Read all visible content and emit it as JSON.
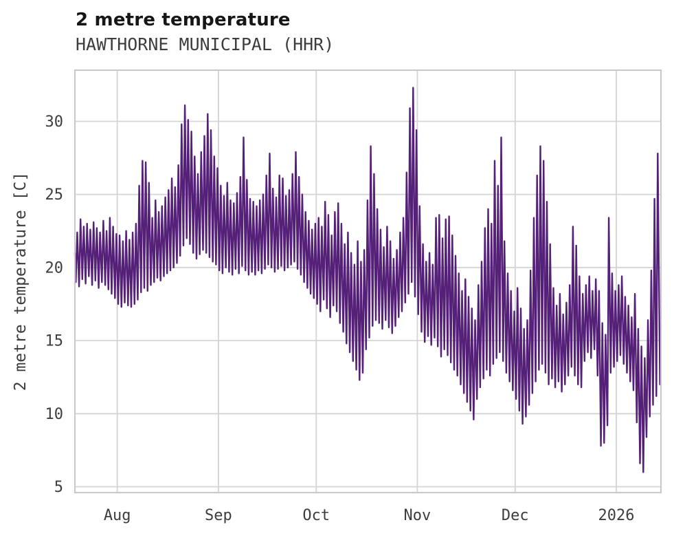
{
  "chart_data": {
    "type": "line",
    "title": "2 metre temperature",
    "subtitle": "HAWTHORNE MUNICIPAL (HHR)",
    "ylabel": "2 metre temperature [C]",
    "xlabel": "",
    "grid": true,
    "legend_position": "none",
    "line_color": "#552078",
    "grid_color": "#d4d4d4",
    "border_color": "#c9c9c9",
    "text_color": "#3d3d3d",
    "background_color": "#ffffff",
    "ylim": [
      4.6,
      33.5
    ],
    "yticks": [
      5,
      10,
      15,
      20,
      25,
      30
    ],
    "x_axis": {
      "unit": "day-index (0 = first plotted day, ~mid-July)",
      "total_days": 179.7,
      "ticks": [
        {
          "label": "Aug",
          "day": 13
        },
        {
          "label": "Sep",
          "day": 44
        },
        {
          "label": "Oct",
          "day": 74
        },
        {
          "label": "Nov",
          "day": 105
        },
        {
          "label": "Dec",
          "day": 135
        },
        {
          "label": "2026",
          "day": 166
        }
      ]
    },
    "series_name": "2 metre temperature [C]",
    "sampling_note": "high-frequency series depicted; encoded as daily min/max envelope read from the plot",
    "daily_max": [
      22.4,
      23.3,
      22.8,
      23.0,
      22.6,
      23.1,
      22.7,
      22.4,
      23.2,
      22.5,
      23.4,
      22.8,
      22.3,
      22.2,
      21.8,
      22.5,
      21.9,
      22.4,
      23.0,
      25.6,
      27.3,
      27.2,
      25.8,
      23.4,
      24.6,
      23.8,
      24.2,
      24.8,
      25.3,
      26.1,
      25.5,
      27.0,
      29.8,
      31.1,
      30.1,
      29.3,
      27.6,
      26.4,
      27.9,
      29.0,
      30.5,
      29.4,
      27.6,
      26.8,
      25.6,
      24.9,
      25.8,
      24.6,
      24.4,
      25.1,
      26.2,
      28.9,
      26.0,
      24.7,
      24.5,
      24.2,
      24.6,
      25.0,
      26.3,
      27.8,
      25.4,
      24.8,
      26.3,
      26.1,
      24.9,
      25.3,
      26.4,
      27.9,
      26.2,
      25.0,
      23.8,
      23.2,
      22.6,
      23.0,
      23.4,
      22.8,
      24.5,
      23.6,
      22.2,
      23.8,
      24.4,
      23.0,
      21.6,
      22.4,
      21.0,
      20.2,
      21.8,
      20.4,
      21.2,
      24.6,
      28.3,
      26.4,
      24.0,
      22.6,
      21.4,
      22.8,
      21.8,
      20.6,
      21.2,
      22.4,
      23.4,
      26.5,
      30.9,
      32.3,
      29.4,
      24.2,
      21.6,
      20.4,
      21.0,
      20.2,
      23.4,
      23.6,
      22.0,
      23.3,
      23.5,
      22.2,
      20.8,
      19.6,
      18.4,
      19.2,
      18.0,
      17.2,
      16.4,
      18.8,
      20.4,
      22.7,
      24.0,
      23.0,
      27.3,
      25.6,
      28.9,
      21.8,
      19.6,
      18.4,
      17.0,
      18.6,
      17.2,
      15.8,
      16.4,
      19.8,
      23.4,
      26.3,
      28.3,
      27.3,
      24.5,
      21.6,
      18.6,
      17.4,
      18.2,
      16.8,
      17.6,
      18.8,
      22.8,
      21.5,
      19.4,
      18.2,
      18.8,
      19.4,
      18.4,
      19.2,
      18.4,
      16.2,
      15.4,
      23.4,
      19.6,
      18.4,
      18.8,
      19.4,
      18.0,
      17.4,
      16.6,
      18.2,
      15.8,
      14.6,
      13.8,
      16.4,
      19.8,
      24.7,
      27.8
    ],
    "daily_min": [
      19.0,
      18.7,
      19.2,
      18.9,
      19.4,
      18.8,
      19.1,
      18.6,
      19.0,
      18.8,
      18.5,
      18.2,
      17.9,
      17.5,
      17.3,
      17.6,
      17.4,
      17.3,
      17.5,
      17.8,
      18.3,
      18.6,
      18.4,
      18.8,
      19.0,
      19.3,
      19.1,
      19.4,
      19.6,
      19.8,
      20.0,
      20.3,
      20.8,
      21.5,
      22.0,
      21.6,
      21.0,
      20.6,
      20.9,
      21.2,
      21.0,
      20.7,
      20.4,
      20.2,
      19.8,
      19.6,
      20.0,
      19.7,
      19.5,
      19.9,
      19.6,
      20.1,
      19.8,
      19.5,
      19.7,
      19.5,
      19.8,
      19.6,
      19.9,
      20.2,
      20.0,
      19.7,
      19.9,
      20.1,
      19.8,
      20.0,
      20.2,
      20.4,
      19.9,
      19.5,
      19.0,
      18.6,
      18.2,
      17.9,
      17.5,
      17.0,
      17.8,
      17.2,
      16.6,
      17.4,
      17.0,
      16.2,
      15.6,
      14.8,
      14.2,
      13.6,
      13.0,
      12.3,
      12.8,
      14.4,
      15.2,
      16.0,
      16.4,
      16.2,
      15.8,
      16.4,
      15.9,
      15.5,
      16.0,
      16.6,
      17.0,
      17.6,
      18.2,
      19.0,
      18.0,
      16.8,
      15.6,
      14.9,
      15.3,
      14.7,
      15.2,
      14.6,
      13.9,
      14.4,
      14.0,
      13.5,
      13.0,
      12.6,
      12.0,
      11.4,
      10.8,
      10.2,
      9.6,
      11.0,
      11.8,
      12.4,
      13.0,
      12.6,
      13.4,
      13.8,
      14.2,
      13.6,
      12.8,
      12.2,
      11.6,
      11.0,
      10.2,
      9.3,
      9.8,
      10.6,
      11.4,
      12.2,
      13.0,
      13.4,
      12.8,
      12.0,
      12.4,
      11.8,
      12.2,
      11.5,
      12.0,
      12.6,
      13.2,
      12.6,
      12.0,
      11.8,
      13.6,
      14.2,
      13.8,
      14.4,
      12.6,
      7.8,
      8.0,
      9.2,
      12.8,
      13.2,
      13.6,
      14.0,
      13.4,
      12.8,
      12.2,
      11.6,
      9.4,
      6.6,
      6.0,
      8.4,
      9.8,
      10.6,
      11.2
    ],
    "start_point": {
      "day": 0.0,
      "value": 21.0
    },
    "end_point": {
      "day": 179.4,
      "value": 12.0
    }
  }
}
